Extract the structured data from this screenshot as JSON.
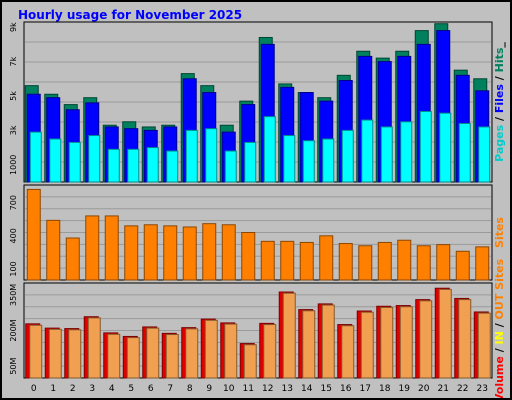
{
  "chart_data": {
    "type": "bar",
    "title": "Hourly usage for November 2025",
    "categories": [
      "0",
      "1",
      "2",
      "3",
      "4",
      "5",
      "6",
      "7",
      "8",
      "9",
      "10",
      "11",
      "12",
      "13",
      "14",
      "15",
      "16",
      "17",
      "18",
      "19",
      "20",
      "21",
      "22",
      "23"
    ],
    "panels": [
      {
        "id": "requests",
        "axis_label_parts": [
          {
            "text": "Pages",
            "color": "#00cccc"
          },
          {
            "text": " / ",
            "color": "#000000"
          },
          {
            "text": "Files",
            "color": "#0000ff"
          },
          {
            "text": " / ",
            "color": "#000000"
          },
          {
            "text": "Hits",
            "color": "#00805c"
          },
          {
            "text": "_",
            "color": "#000000"
          }
        ],
        "ticks": [
          {
            "value": 1000,
            "label": "1000"
          },
          {
            "value": 3000,
            "label": "3k"
          },
          {
            "value": 5000,
            "label": "5k"
          },
          {
            "value": 7000,
            "label": "7k"
          },
          {
            "value": 9000,
            "label": "9k"
          }
        ],
        "ylim": [
          0,
          9300
        ],
        "series": [
          {
            "name": "Hits",
            "color": "#00805c",
            "offset": -2,
            "width": 13,
            "values": [
              5600,
              5100,
              4500,
              4900,
              3300,
              3500,
              3200,
              3300,
              6300,
              5600,
              3300,
              4700,
              8400,
              5700,
              5200,
              4900,
              6200,
              7600,
              7200,
              7600,
              8800,
              9200,
              6500,
              6000
            ]
          },
          {
            "name": "Files",
            "color": "#0000ff",
            "offset": 0,
            "width": 13,
            "values": [
              5100,
              4900,
              4200,
              4600,
              3200,
              3100,
              3000,
              3200,
              6000,
              5200,
              2900,
              4500,
              8000,
              5500,
              5200,
              4700,
              5900,
              7300,
              7000,
              7300,
              8000,
              8800,
              6200,
              5300
            ]
          },
          {
            "name": "Pages",
            "color": "#00ffff",
            "offset": 2,
            "width": 11,
            "values": [
              2900,
              2500,
              2300,
              2700,
              1900,
              1900,
              2000,
              1800,
              3000,
              3100,
              1800,
              2300,
              3800,
              2700,
              2400,
              2500,
              3000,
              3600,
              3200,
              3500,
              4100,
              4000,
              3400,
              3200
            ]
          }
        ]
      },
      {
        "id": "sites",
        "axis_label_parts": [
          {
            "text": "Sites",
            "color": "#ff8000"
          }
        ],
        "ticks": [
          {
            "value": 100,
            "label": "100"
          },
          {
            "value": 400,
            "label": "400"
          },
          {
            "value": 700,
            "label": "700"
          }
        ],
        "ylim": [
          0,
          860
        ],
        "series": [
          {
            "name": "Sites",
            "color": "#ff8000",
            "offset": 0,
            "width": 13,
            "values": [
              820,
              540,
              380,
              580,
              580,
              490,
              500,
              490,
              480,
              510,
              500,
              430,
              350,
              350,
              340,
              400,
              330,
              310,
              340,
              360,
              310,
              320,
              260,
              300
            ]
          }
        ]
      },
      {
        "id": "volume",
        "axis_label_parts": [
          {
            "text": "Volume",
            "color": "#ff0000"
          },
          {
            "text": " / ",
            "color": "#000000"
          },
          {
            "text": "IN",
            "color": "#ffff00"
          },
          {
            "text": " / ",
            "color": "#000000"
          },
          {
            "text": "OUT",
            "color": "#ff8000"
          },
          {
            "text": " Sites",
            "color": "#ff8000"
          }
        ],
        "ticks": [
          {
            "value": 50,
            "label": "50M"
          },
          {
            "value": 200,
            "label": "200M"
          },
          {
            "value": 350,
            "label": "350M"
          }
        ],
        "ylim": [
          0,
          400
        ],
        "series": [
          {
            "name": "Volume",
            "color": "#e00000",
            "offset": -1,
            "width": 14,
            "values": [
              228,
              210,
              208,
              258,
              190,
              175,
              215,
              188,
              212,
              248,
              232,
              145,
              230,
              362,
              288,
              312,
              225,
              282,
              302,
              305,
              330,
              378,
              335,
              278
            ]
          },
          {
            "name": "OUT",
            "color": "#f0a050",
            "offset": 2,
            "width": 12,
            "values": [
              222,
              205,
              203,
              253,
              184,
              170,
              210,
              183,
              207,
              243,
              227,
              140,
              225,
              357,
              283,
              307,
              220,
              277,
              297,
              300,
              325,
              373,
              330,
              273
            ]
          }
        ]
      }
    ],
    "grid": true
  }
}
